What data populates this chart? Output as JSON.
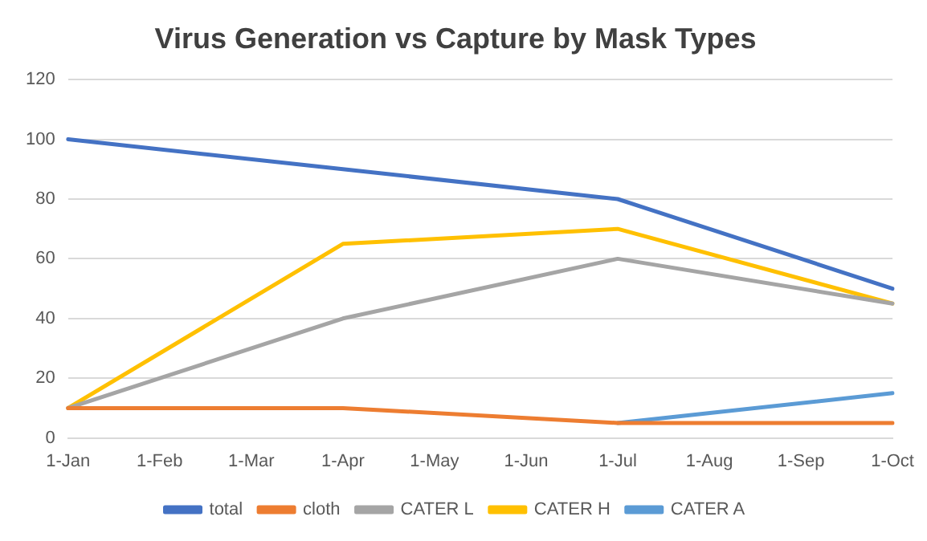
{
  "chart_data": {
    "type": "line",
    "title": "Virus Generation vs Capture by Mask Types",
    "categories": [
      "1-Jan",
      "1-Feb",
      "1-Mar",
      "1-Apr",
      "1-May",
      "1-Jun",
      "1-Jul",
      "1-Aug",
      "1-Sep",
      "1-Oct"
    ],
    "series": [
      {
        "name": "total",
        "color": "#4472c4",
        "values": [
          100,
          null,
          null,
          90,
          null,
          null,
          80,
          null,
          null,
          50
        ]
      },
      {
        "name": "cloth",
        "color": "#ed7d31",
        "values": [
          10,
          null,
          null,
          10,
          null,
          null,
          5,
          null,
          null,
          5
        ]
      },
      {
        "name": "CATER L",
        "color": "#a5a5a5",
        "values": [
          10,
          null,
          null,
          40,
          null,
          null,
          60,
          null,
          null,
          45
        ]
      },
      {
        "name": "CATER H",
        "color": "#ffc000",
        "values": [
          10,
          null,
          null,
          65,
          null,
          null,
          70,
          null,
          null,
          45
        ]
      },
      {
        "name": "CATER A",
        "color": "#5b9bd5",
        "values": [
          null,
          null,
          null,
          null,
          null,
          null,
          5,
          null,
          null,
          15
        ]
      }
    ],
    "ylim": [
      0,
      120
    ],
    "yticks": [
      0,
      20,
      40,
      60,
      80,
      100,
      120
    ],
    "grid": "y",
    "legend": "bottom",
    "marker": "none",
    "line_style": "solid"
  }
}
